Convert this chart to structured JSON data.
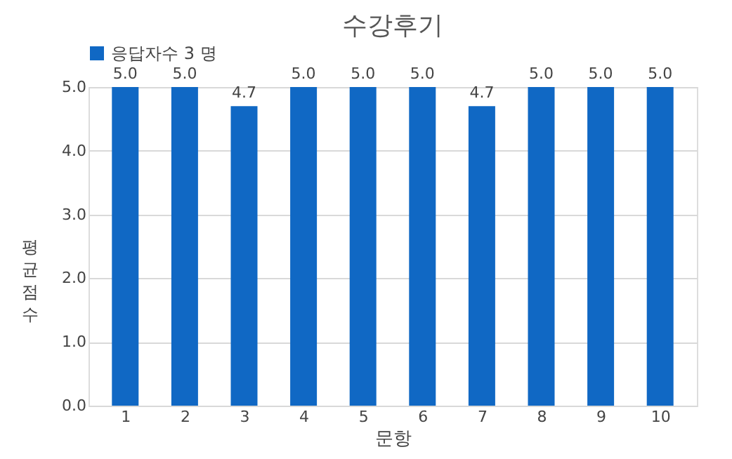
{
  "chart_data": {
    "type": "bar",
    "title": "수강후기",
    "xlabel": "문항",
    "ylabel": "평균 점수",
    "categories": [
      "1",
      "2",
      "3",
      "4",
      "5",
      "6",
      "7",
      "8",
      "9",
      "10"
    ],
    "series": [
      {
        "name": "응답자수 3 명",
        "color": "#1068c4",
        "values": [
          5.0,
          5.0,
          4.7,
          5.0,
          5.0,
          5.0,
          4.7,
          5.0,
          5.0,
          5.0
        ],
        "value_labels": [
          "5.0",
          "5.0",
          "4.7",
          "5.0",
          "5.0",
          "5.0",
          "4.7",
          "5.0",
          "5.0",
          "5.0"
        ]
      }
    ],
    "ylim": [
      0,
      5
    ],
    "yticks": [
      {
        "value": 0,
        "label": "0.0"
      },
      {
        "value": 1,
        "label": "1.0"
      },
      {
        "value": 2,
        "label": "2.0"
      },
      {
        "value": 3,
        "label": "3.0"
      },
      {
        "value": 4,
        "label": "4.0"
      },
      {
        "value": 5,
        "label": "5.0"
      }
    ],
    "grid": "y",
    "legend": "top"
  }
}
